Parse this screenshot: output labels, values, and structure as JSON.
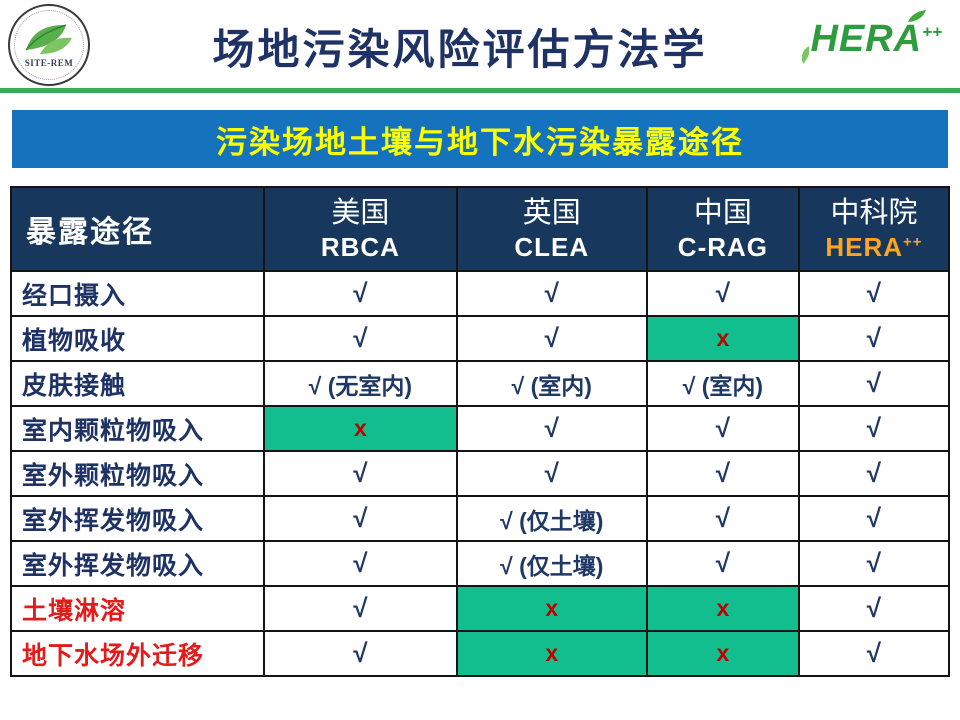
{
  "header": {
    "title": "场地污染风险评估方法学",
    "site_rem_label": "SITE-REM",
    "hera_text": "HERA",
    "hera_sup": "++"
  },
  "banner": {
    "title": "污染场地土壤与地下水污染暴露途径"
  },
  "table": {
    "row_header_label": "暴露途径",
    "col_widths": [
      "27%",
      "20.5%",
      "20.3%",
      "16.2%",
      "16%"
    ],
    "columns": [
      {
        "line1": "美国",
        "line2": "RBCA",
        "accent": false
      },
      {
        "line1": "英国",
        "line2": "CLEA",
        "accent": false
      },
      {
        "line1": "中国",
        "line2": "C-RAG",
        "accent": false
      },
      {
        "line1": "中科院",
        "line2": "HERA",
        "line2_sup": "++",
        "accent": true
      }
    ],
    "rows": [
      {
        "label": "经口摄入",
        "red": false,
        "cells": [
          {
            "text": "√"
          },
          {
            "text": "√"
          },
          {
            "text": "√"
          },
          {
            "text": "√"
          }
        ]
      },
      {
        "label": "植物吸收",
        "red": false,
        "cells": [
          {
            "text": "√"
          },
          {
            "text": "√"
          },
          {
            "text": "x",
            "cross": true,
            "highlight": true
          },
          {
            "text": "√"
          }
        ]
      },
      {
        "label": "皮肤接触",
        "red": false,
        "cells": [
          {
            "text": "√ (无室内)",
            "note": true
          },
          {
            "text": "√ (室内)",
            "note": true
          },
          {
            "text": "√ (室内)",
            "note": true
          },
          {
            "text": "√"
          }
        ]
      },
      {
        "label": "室内颗粒物吸入",
        "red": false,
        "cells": [
          {
            "text": "x",
            "cross": true,
            "highlight": true
          },
          {
            "text": "√"
          },
          {
            "text": "√"
          },
          {
            "text": "√"
          }
        ]
      },
      {
        "label": "室外颗粒物吸入",
        "red": false,
        "cells": [
          {
            "text": "√"
          },
          {
            "text": "√"
          },
          {
            "text": "√"
          },
          {
            "text": "√"
          }
        ]
      },
      {
        "label": "室外挥发物吸入",
        "red": false,
        "cells": [
          {
            "text": "√"
          },
          {
            "text": "√ (仅土壤)",
            "note": true
          },
          {
            "text": "√"
          },
          {
            "text": "√"
          }
        ]
      },
      {
        "label": "室外挥发物吸入",
        "red": false,
        "cells": [
          {
            "text": "√"
          },
          {
            "text": "√ (仅土壤)",
            "note": true
          },
          {
            "text": "√"
          },
          {
            "text": "√"
          }
        ]
      },
      {
        "label": "土壤淋溶",
        "red": true,
        "cells": [
          {
            "text": "√"
          },
          {
            "text": "x",
            "cross": true,
            "highlight": true
          },
          {
            "text": "x",
            "cross": true,
            "highlight": true
          },
          {
            "text": "√"
          }
        ]
      },
      {
        "label": "地下水场外迁移",
        "red": true,
        "cells": [
          {
            "text": "√"
          },
          {
            "text": "x",
            "cross": true,
            "highlight": true
          },
          {
            "text": "x",
            "cross": true,
            "highlight": true
          },
          {
            "text": "√"
          }
        ]
      }
    ]
  },
  "colors": {
    "title_navy": "#1E3265",
    "divider_green": "#35AC5A",
    "banner_blue": "#1573BD",
    "banner_yellow": "#FDFF00",
    "table_header_navy": "#17375D",
    "highlight_green": "#13BE8E",
    "check_navy": "#1F3864",
    "cross_red": "#C00000",
    "label_red": "#E21B1B",
    "hera_orange": "#FFA41C",
    "logo_green": "#2E9B3F"
  }
}
